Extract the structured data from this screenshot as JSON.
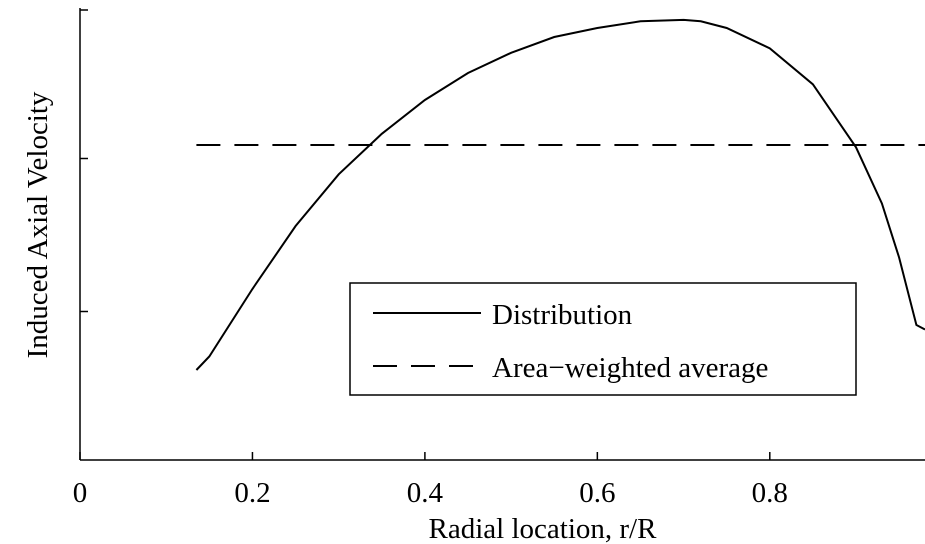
{
  "chart_data": {
    "type": "line",
    "title": "",
    "xlabel": "Radial location, r/R",
    "ylabel": "Induced Axial Velocity",
    "xlim": [
      0,
      0.98
    ],
    "ylim": [
      0,
      1
    ],
    "x_ticks": [
      {
        "value": 0,
        "label": "0"
      },
      {
        "value": 0.2,
        "label": "0.2"
      },
      {
        "value": 0.4,
        "label": "0.4"
      },
      {
        "value": 0.6,
        "label": "0.6"
      },
      {
        "value": 0.8,
        "label": "0.8"
      }
    ],
    "y_ticks": [
      {
        "value": 0.33,
        "label": ""
      },
      {
        "value": 0.67,
        "label": ""
      },
      {
        "value": 1.0,
        "label": ""
      }
    ],
    "grid": false,
    "legend_position": "center-right",
    "series": [
      {
        "name": "Distribution",
        "style": "solid",
        "color": "#000000",
        "x": [
          0.135,
          0.15,
          0.2,
          0.25,
          0.3,
          0.35,
          0.4,
          0.45,
          0.5,
          0.55,
          0.6,
          0.65,
          0.7,
          0.72,
          0.75,
          0.8,
          0.85,
          0.9,
          0.93,
          0.95,
          0.97,
          0.98
        ],
        "y": [
          0.2,
          0.23,
          0.38,
          0.52,
          0.635,
          0.725,
          0.8,
          0.86,
          0.905,
          0.94,
          0.96,
          0.975,
          0.978,
          0.975,
          0.96,
          0.915,
          0.835,
          0.695,
          0.57,
          0.45,
          0.3,
          0.29
        ]
      },
      {
        "name": "Area−weighted average",
        "style": "dashed",
        "color": "#000000",
        "x": [
          0.135,
          0.98
        ],
        "y": [
          0.7,
          0.7
        ]
      }
    ]
  }
}
